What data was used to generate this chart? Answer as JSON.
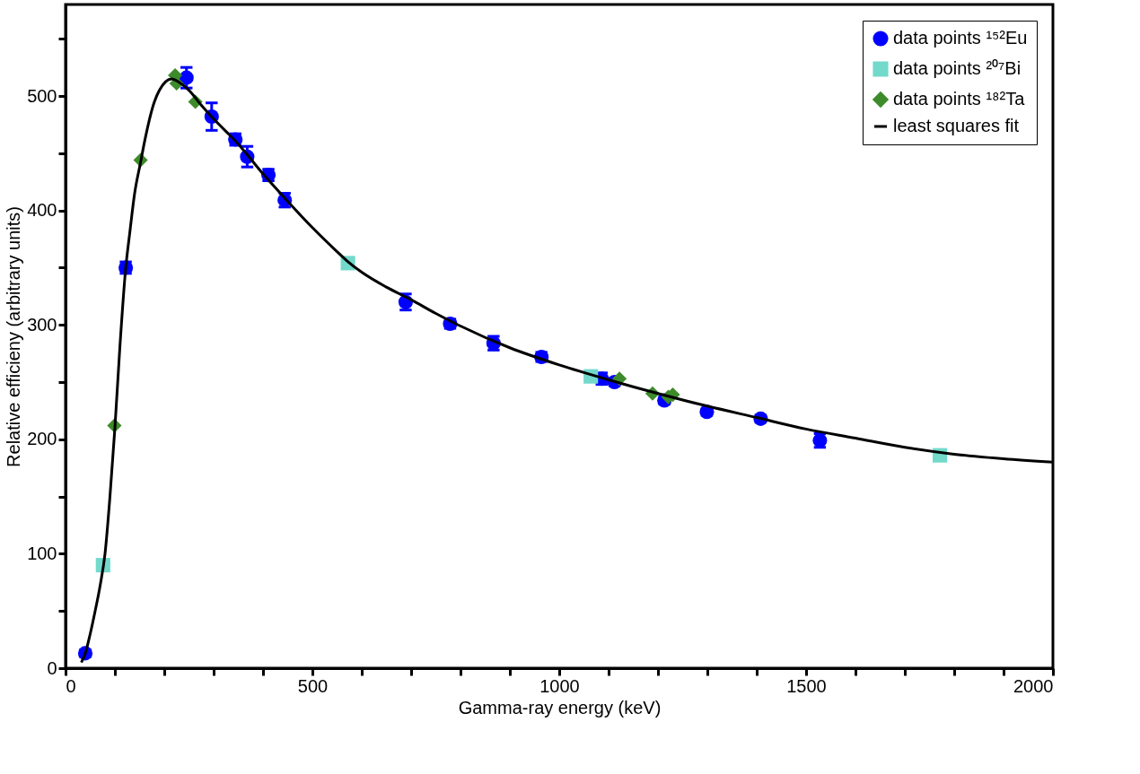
{
  "chart_data": {
    "type": "scatter",
    "xlabel": "Gamma-ray energy (keV)",
    "ylabel": "Relative efficieny (arbitrary units)",
    "xlim": [
      0,
      2000
    ],
    "ylim": [
      0,
      580
    ],
    "xticks": [
      0,
      {
        "value": 100,
        "label": null
      },
      {
        "value": 200,
        "label": null
      },
      {
        "value": 300,
        "label": null
      },
      {
        "value": 400,
        "label": null
      },
      500,
      {
        "value": 600,
        "label": null
      },
      {
        "value": 700,
        "label": null
      },
      {
        "value": 800,
        "label": null
      },
      {
        "value": 900,
        "label": null
      },
      1000,
      {
        "value": 1100,
        "label": null
      },
      {
        "value": 1200,
        "label": null
      },
      {
        "value": 1300,
        "label": null
      },
      {
        "value": 1400,
        "label": null
      },
      1500,
      {
        "value": 1600,
        "label": null
      },
      {
        "value": 1700,
        "label": null
      },
      {
        "value": 1800,
        "label": null
      },
      {
        "value": 1900,
        "label": null
      },
      2000
    ],
    "yticks": [
      0,
      {
        "value": 50,
        "label": null
      },
      100,
      {
        "value": 150,
        "label": null
      },
      200,
      {
        "value": 250,
        "label": null
      },
      300,
      {
        "value": 350,
        "label": null
      },
      400,
      {
        "value": 450,
        "label": null
      },
      500,
      {
        "value": 550,
        "label": null
      }
    ],
    "grid": false,
    "legend": "top right",
    "series": [
      {
        "name": "data points ¹⁵²Eu",
        "marker": "circle",
        "color": "#0000ff",
        "x": [
          40,
          122,
          245,
          296,
          344,
          368,
          411,
          444,
          689,
          779,
          867,
          964,
          1086,
          1112,
          1213,
          1299,
          1408,
          1528
        ],
        "values": [
          13,
          350,
          516,
          482,
          462,
          447,
          431,
          409,
          320,
          301,
          284,
          272,
          253,
          250,
          234,
          224,
          218,
          199
        ],
        "errors": [
          3,
          5,
          9,
          12,
          5,
          9,
          5,
          6,
          7,
          4,
          6,
          4,
          5,
          3,
          3,
          3,
          3,
          6
        ]
      },
      {
        "name": "data points ²⁰⁷Bi",
        "marker": "square",
        "color": "#72d9cb",
        "x": [
          76,
          572,
          1064,
          1771
        ],
        "values": [
          90,
          354,
          255,
          186
        ],
        "errors": [
          3,
          3,
          3,
          3
        ]
      },
      {
        "name": "data points ¹⁸²Ta",
        "marker": "diamond",
        "color": "#3d8b2a",
        "x": [
          99,
          152,
          222,
          225,
          263,
          1122,
          1189,
          1221,
          1230
        ],
        "values": [
          212,
          444,
          518,
          511,
          495,
          253,
          240,
          237,
          239
        ]
      },
      {
        "name": "least squares fit",
        "type": "line",
        "line_style": "solid",
        "color": "#000000",
        "x": [
          32,
          40,
          50,
          60,
          70,
          80,
          90,
          100,
          110,
          122,
          130,
          140,
          152,
          160,
          180,
          190,
          215,
          230,
          250,
          275,
          300,
          350,
          400,
          450,
          500,
          550,
          570,
          600,
          650,
          700,
          750,
          800,
          900,
          1000,
          1100,
          1200,
          1300,
          1400,
          1500,
          1600,
          1700,
          1800,
          1900,
          2000
        ],
        "values": [
          5,
          13,
          30,
          50,
          72,
          100,
          150,
          210,
          280,
          350,
          380,
          415,
          442,
          460,
          495,
          505,
          515,
          512,
          505,
          492,
          480,
          458,
          432,
          408,
          385,
          364,
          356,
          346,
          333,
          322,
          310,
          299,
          280,
          265,
          252,
          240,
          229,
          219,
          209,
          201,
          193,
          187,
          183,
          180
        ]
      }
    ]
  }
}
